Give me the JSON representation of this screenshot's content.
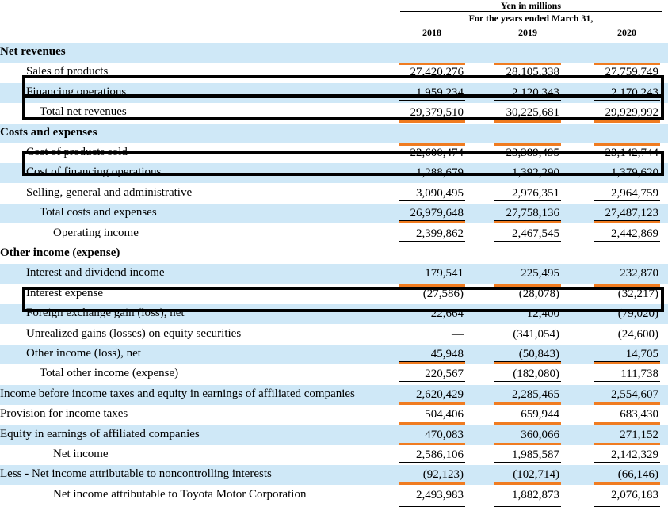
{
  "header": {
    "unit": "Yen in millions",
    "period": "For the years ended March 31,",
    "years": [
      "2018",
      "2019",
      "2020"
    ]
  },
  "rows": [
    {
      "label": "Net revenues",
      "section": true,
      "values": [
        "",
        "",
        ""
      ]
    },
    {
      "label": "Sales of products",
      "values": [
        "27,420,276",
        "28,105,338",
        "27,759,749"
      ]
    },
    {
      "label": "Financing operations",
      "values": [
        "1,959,234",
        "2,120,343",
        "2,170,243"
      ]
    },
    {
      "label": "Total net revenues",
      "values": [
        "29,379,510",
        "30,225,681",
        "29,929,992"
      ]
    },
    {
      "label": "Costs and expenses",
      "section": true,
      "values": [
        "",
        "",
        ""
      ]
    },
    {
      "label": "Cost of products sold",
      "values": [
        "22,600,474",
        "23,389,495",
        "23,142,744"
      ]
    },
    {
      "label": "Cost of financing operations",
      "values": [
        "1,288,679",
        "1,392,290",
        "1,379,620"
      ]
    },
    {
      "label": "Selling, general and administrative",
      "values": [
        "3,090,495",
        "2,976,351",
        "2,964,759"
      ]
    },
    {
      "label": "Total costs and expenses",
      "values": [
        "26,979,648",
        "27,758,136",
        "27,487,123"
      ]
    },
    {
      "label": "Operating income",
      "values": [
        "2,399,862",
        "2,467,545",
        "2,442,869"
      ]
    },
    {
      "label": "Other income (expense)",
      "section": true,
      "values": [
        "",
        "",
        ""
      ]
    },
    {
      "label": "Interest and dividend income",
      "values": [
        "179,541",
        "225,495",
        "232,870"
      ]
    },
    {
      "label": "Interest expense",
      "values": [
        "(27,586)",
        "(28,078)",
        "(32,217)"
      ]
    },
    {
      "label": "Foreign exchange gain (loss), net",
      "values": [
        "22,664",
        "12,400",
        "(79,020)"
      ]
    },
    {
      "label": "Unrealized gains (losses) on equity securities",
      "values": [
        "—",
        "(341,054)",
        "(24,600)"
      ]
    },
    {
      "label": "Other income (loss), net",
      "values": [
        "45,948",
        "(50,843)",
        "14,705"
      ]
    },
    {
      "label": "Total other income (expense)",
      "values": [
        "220,567",
        "(182,080)",
        "111,738"
      ]
    },
    {
      "label": "Income before income taxes and equity in earnings of affiliated companies",
      "values": [
        "2,620,429",
        "2,285,465",
        "2,554,607"
      ]
    },
    {
      "label": "Provision for income taxes",
      "values": [
        "504,406",
        "659,944",
        "683,430"
      ]
    },
    {
      "label": "Equity in earnings of affiliated companies",
      "values": [
        "470,083",
        "360,066",
        "271,152"
      ]
    },
    {
      "label": "Net income",
      "values": [
        "2,586,106",
        "1,985,587",
        "2,142,329"
      ]
    },
    {
      "label": "Less - Net income attributable to noncontrolling interests",
      "values": [
        "(92,123)",
        "(102,714)",
        "(66,146)"
      ]
    },
    {
      "label": "Net income attributable to Toyota Motor Corporation",
      "values": [
        "2,493,983",
        "1,882,873",
        "2,076,183"
      ]
    }
  ],
  "highlighted_rows": [
    "Financing operations",
    "Total net revenues",
    "Cost of financing operations",
    "Foreign exchange gain (loss), net"
  ],
  "colors": {
    "row_shade": "#cfe8f7",
    "accent_bar": "#f07c21",
    "highlight_box": "#000000"
  }
}
